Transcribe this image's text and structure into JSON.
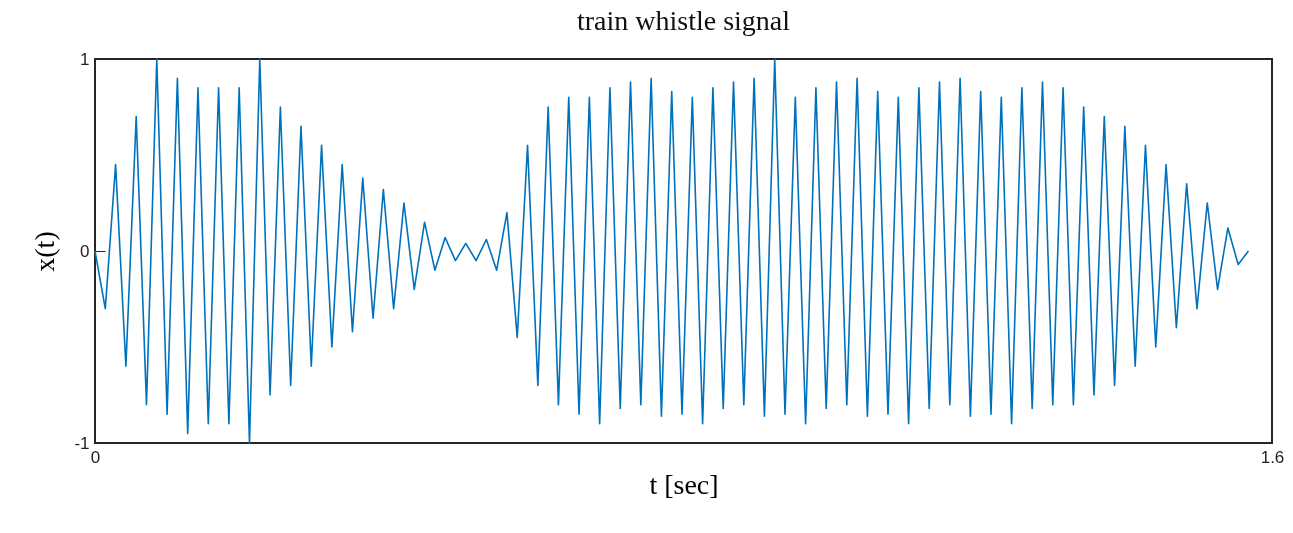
{
  "chart_data": {
    "type": "line",
    "title": "train whistle signal",
    "xlabel": "t [sec]",
    "ylabel": "x(t)",
    "x": [
      0,
      0.014,
      0.028,
      0.042,
      0.056,
      0.07,
      0.084,
      0.098,
      0.112,
      0.126,
      0.14,
      0.154,
      0.168,
      0.182,
      0.196,
      0.21,
      0.224,
      0.238,
      0.252,
      0.266,
      0.28,
      0.294,
      0.308,
      0.322,
      0.336,
      0.35,
      0.364,
      0.378,
      0.392,
      0.406,
      0.42,
      0.434,
      0.448,
      0.462,
      0.476,
      0.49,
      0.504,
      0.518,
      0.532,
      0.546,
      0.56,
      0.574,
      0.588,
      0.602,
      0.616,
      0.63,
      0.644,
      0.658,
      0.672,
      0.686,
      0.7,
      0.714,
      0.728,
      0.742,
      0.756,
      0.77,
      0.784,
      0.798,
      0.812,
      0.826,
      0.84,
      0.854,
      0.868,
      0.882,
      0.896,
      0.91,
      0.924,
      0.938,
      0.952,
      0.966,
      0.98,
      0.994,
      1.008,
      1.022,
      1.036,
      1.05,
      1.064,
      1.078,
      1.092,
      1.106,
      1.12,
      1.134,
      1.148,
      1.162,
      1.176,
      1.19,
      1.204,
      1.218,
      1.232,
      1.246,
      1.26,
      1.274,
      1.288,
      1.302,
      1.316,
      1.33,
      1.344,
      1.358,
      1.372,
      1.386,
      1.4,
      1.414,
      1.428,
      1.442,
      1.456,
      1.47,
      1.484,
      1.498,
      1.512,
      1.526,
      1.54,
      1.554,
      1.568
    ],
    "series": [
      {
        "color": "#0072bd",
        "values": [
          0,
          -0.3,
          0.45,
          -0.6,
          0.7,
          -0.8,
          1,
          -0.85,
          0.9,
          -0.95,
          0.85,
          -0.9,
          0.85,
          -0.9,
          0.85,
          -1,
          1,
          -0.75,
          0.75,
          -0.7,
          0.65,
          -0.6,
          0.55,
          -0.5,
          0.45,
          -0.42,
          0.38,
          -0.35,
          0.32,
          -0.3,
          0.25,
          -0.2,
          0.15,
          -0.1,
          0.07,
          -0.05,
          0.04,
          -0.05,
          0.06,
          -0.1,
          0.2,
          -0.45,
          0.55,
          -0.7,
          0.75,
          -0.8,
          0.8,
          -0.85,
          0.8,
          -0.9,
          0.85,
          -0.82,
          0.88,
          -0.8,
          0.9,
          -0.86,
          0.83,
          -0.85,
          0.8,
          -0.9,
          0.85,
          -0.82,
          0.88,
          -0.8,
          0.9,
          -0.86,
          1,
          -0.85,
          0.8,
          -0.9,
          0.85,
          -0.82,
          0.88,
          -0.8,
          0.9,
          -0.86,
          0.83,
          -0.85,
          0.8,
          -0.9,
          0.85,
          -0.82,
          0.88,
          -0.8,
          0.9,
          -0.86,
          0.83,
          -0.85,
          0.8,
          -0.9,
          0.85,
          -0.82,
          0.88,
          -0.8,
          0.85,
          -0.8,
          0.75,
          -0.75,
          0.7,
          -0.7,
          0.65,
          -0.6,
          0.55,
          -0.5,
          0.45,
          -0.4,
          0.35,
          -0.3,
          0.25,
          -0.2,
          0.12,
          -0.07,
          0
        ]
      }
    ],
    "xlim": [
      0,
      1.6
    ],
    "ylim": [
      -1,
      1
    ],
    "xticks": [
      0,
      1.6
    ],
    "yticks": [
      -1,
      0,
      1
    ]
  }
}
